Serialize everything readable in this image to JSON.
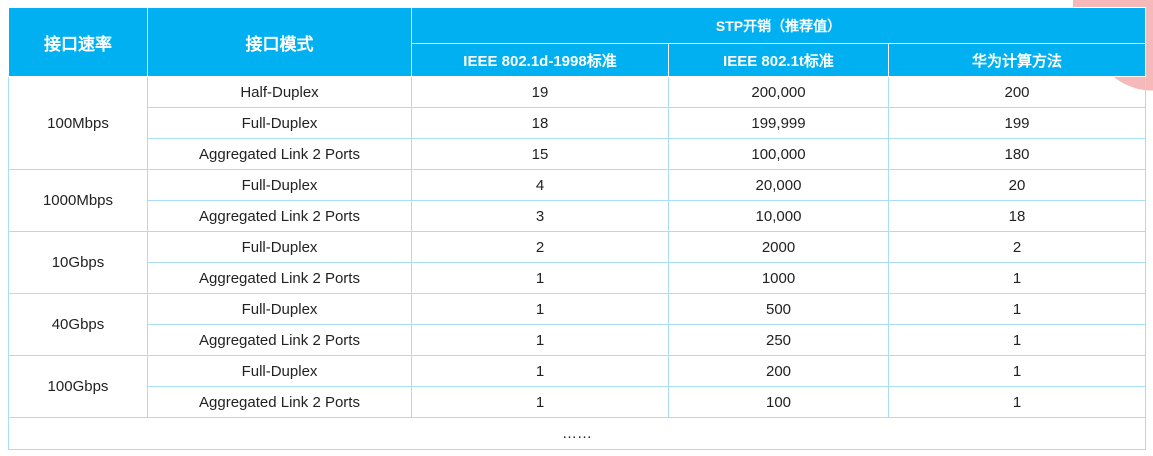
{
  "header": {
    "speed": "接口速率",
    "mode": "接口模式",
    "group": "STP开销（推荐值）",
    "col_ieee_d": "IEEE 802.1d-1998标准",
    "col_ieee_t": "IEEE 802.1t标准",
    "col_huawei": "华为计算方法"
  },
  "groups": [
    {
      "speed": "100Mbps",
      "rows": [
        {
          "mode": "Half-Duplex",
          "ieee_d": "19",
          "ieee_t": "200,000",
          "huawei": "200"
        },
        {
          "mode": "Full-Duplex",
          "ieee_d": "18",
          "ieee_t": "199,999",
          "huawei": "199"
        },
        {
          "mode": "Aggregated Link 2 Ports",
          "ieee_d": "15",
          "ieee_t": "100,000",
          "huawei": "180"
        }
      ]
    },
    {
      "speed": "1000Mbps",
      "rows": [
        {
          "mode": "Full-Duplex",
          "ieee_d": "4",
          "ieee_t": "20,000",
          "huawei": "20"
        },
        {
          "mode": "Aggregated Link 2 Ports",
          "ieee_d": "3",
          "ieee_t": "10,000",
          "huawei": "18"
        }
      ]
    },
    {
      "speed": "10Gbps",
      "rows": [
        {
          "mode": "Full-Duplex",
          "ieee_d": "2",
          "ieee_t": "2000",
          "huawei": "2"
        },
        {
          "mode": "Aggregated Link 2 Ports",
          "ieee_d": "1",
          "ieee_t": "1000",
          "huawei": "1"
        }
      ]
    },
    {
      "speed": "40Gbps",
      "rows": [
        {
          "mode": "Full-Duplex",
          "ieee_d": "1",
          "ieee_t": "500",
          "huawei": "1"
        },
        {
          "mode": "Aggregated Link 2 Ports",
          "ieee_d": "1",
          "ieee_t": "250",
          "huawei": "1"
        }
      ]
    },
    {
      "speed": "100Gbps",
      "rows": [
        {
          "mode": "Full-Duplex",
          "ieee_d": "1",
          "ieee_t": "200",
          "huawei": "1"
        },
        {
          "mode": "Aggregated Link 2 Ports",
          "ieee_d": "1",
          "ieee_t": "100",
          "huawei": "1"
        }
      ]
    }
  ],
  "ellipsis": "……"
}
